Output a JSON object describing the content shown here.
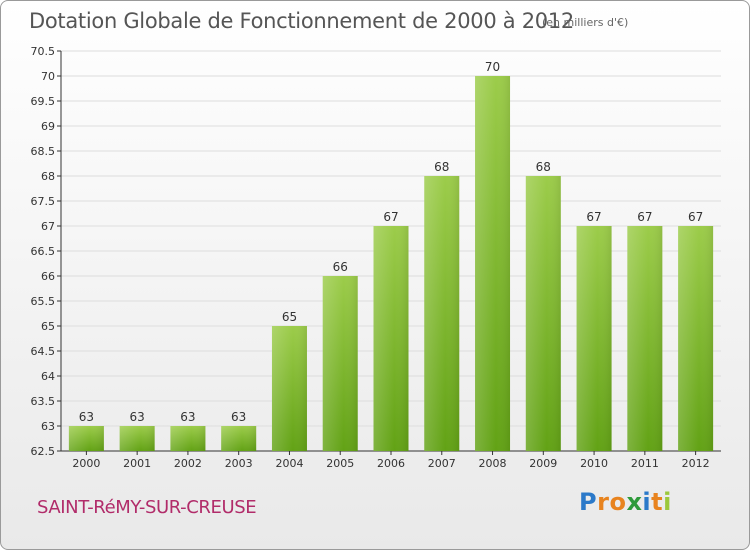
{
  "header": {
    "title": "Dotation Globale de Fonctionnement de 2000 à 2012",
    "unit_note": "(en milliers d'€)"
  },
  "footer": {
    "commune": "SAINT-RéMY-SUR-CREUSE",
    "logo_text": "Proxiti",
    "logo_colors": [
      "#2b79c9",
      "#e8831e",
      "#e8831e",
      "#2e9a3a",
      "#2b79c9",
      "#e8831e",
      "#9bc83b"
    ]
  },
  "colors": {
    "bar_top": "#9ccc4a",
    "bar_bottom": "#62a215",
    "grid": "#dddddd",
    "axis": "#333333"
  },
  "chart_data": {
    "type": "bar",
    "categories": [
      "2000",
      "2001",
      "2002",
      "2003",
      "2004",
      "2005",
      "2006",
      "2007",
      "2008",
      "2009",
      "2010",
      "2011",
      "2012"
    ],
    "values": [
      63,
      63,
      63,
      63,
      65,
      66,
      67,
      68,
      70,
      68,
      67,
      67,
      67
    ],
    "value_labels": [
      "63",
      "63",
      "63",
      "63",
      "65",
      "66",
      "67",
      "68",
      "70",
      "68",
      "67",
      "67",
      "67"
    ],
    "yticks": [
      "62.5",
      "63",
      "63.5",
      "64",
      "64.5",
      "65",
      "65.5",
      "66",
      "66.5",
      "67",
      "67.5",
      "68",
      "68.5",
      "69",
      "69.5",
      "70",
      "70.5"
    ],
    "ylim": [
      62.5,
      70.5
    ],
    "grid": true,
    "title": "Dotation Globale de Fonctionnement de 2000 à 2012",
    "xlabel": "",
    "ylabel": ""
  }
}
